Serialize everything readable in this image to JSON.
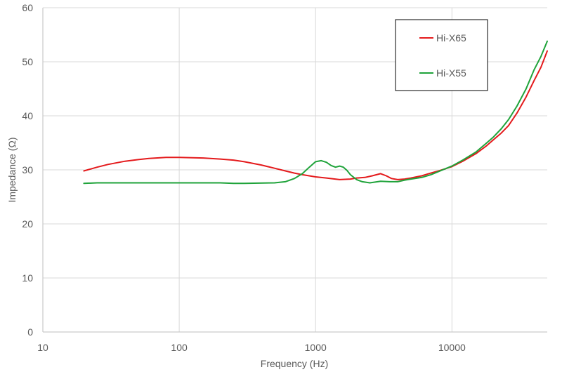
{
  "chart_data": {
    "type": "line",
    "title": "",
    "xlabel": "Frequency (Hz)",
    "ylabel": "Impedance (Ω)",
    "x_scale": "log",
    "xlim": [
      10,
      50000
    ],
    "ylim": [
      0,
      60
    ],
    "x_ticks": [
      10,
      100,
      1000,
      10000
    ],
    "x_tick_labels": [
      "10",
      "100",
      "1000",
      "10000"
    ],
    "y_ticks": [
      0,
      10,
      20,
      30,
      40,
      50,
      60
    ],
    "y_tick_labels": [
      "0",
      "10",
      "20",
      "30",
      "40",
      "50",
      "60"
    ],
    "grid": true,
    "legend_position": "top-right",
    "series": [
      {
        "name": "Hi-X65",
        "color": "#e41a1c",
        "points": [
          [
            20,
            29.8
          ],
          [
            25,
            30.5
          ],
          [
            30,
            31.0
          ],
          [
            40,
            31.6
          ],
          [
            50,
            31.9
          ],
          [
            60,
            32.1
          ],
          [
            80,
            32.3
          ],
          [
            100,
            32.3
          ],
          [
            150,
            32.2
          ],
          [
            200,
            32.0
          ],
          [
            250,
            31.8
          ],
          [
            300,
            31.5
          ],
          [
            400,
            30.9
          ],
          [
            500,
            30.3
          ],
          [
            600,
            29.8
          ],
          [
            700,
            29.4
          ],
          [
            800,
            29.1
          ],
          [
            1000,
            28.7
          ],
          [
            1200,
            28.5
          ],
          [
            1500,
            28.2
          ],
          [
            1800,
            28.3
          ],
          [
            2000,
            28.5
          ],
          [
            2300,
            28.6
          ],
          [
            2600,
            28.9
          ],
          [
            3000,
            29.3
          ],
          [
            3300,
            28.9
          ],
          [
            3600,
            28.4
          ],
          [
            4000,
            28.2
          ],
          [
            4500,
            28.3
          ],
          [
            5000,
            28.5
          ],
          [
            6000,
            28.9
          ],
          [
            7000,
            29.4
          ],
          [
            8000,
            29.8
          ],
          [
            10000,
            30.6
          ],
          [
            12000,
            31.6
          ],
          [
            15000,
            33.0
          ],
          [
            18000,
            34.5
          ],
          [
            20000,
            35.5
          ],
          [
            23000,
            36.8
          ],
          [
            26000,
            38.2
          ],
          [
            30000,
            40.5
          ],
          [
            35000,
            43.5
          ],
          [
            40000,
            46.5
          ],
          [
            45000,
            49.0
          ],
          [
            50000,
            52.0
          ]
        ]
      },
      {
        "name": "Hi-X55",
        "color": "#1fa33a",
        "points": [
          [
            20,
            27.5
          ],
          [
            25,
            27.6
          ],
          [
            30,
            27.6
          ],
          [
            50,
            27.6
          ],
          [
            100,
            27.6
          ],
          [
            200,
            27.6
          ],
          [
            250,
            27.5
          ],
          [
            300,
            27.5
          ],
          [
            500,
            27.6
          ],
          [
            600,
            27.8
          ],
          [
            700,
            28.4
          ],
          [
            800,
            29.3
          ],
          [
            900,
            30.5
          ],
          [
            1000,
            31.5
          ],
          [
            1100,
            31.7
          ],
          [
            1200,
            31.4
          ],
          [
            1300,
            30.8
          ],
          [
            1400,
            30.5
          ],
          [
            1500,
            30.7
          ],
          [
            1600,
            30.5
          ],
          [
            1700,
            29.9
          ],
          [
            1800,
            29.1
          ],
          [
            2000,
            28.2
          ],
          [
            2200,
            27.8
          ],
          [
            2500,
            27.6
          ],
          [
            3000,
            27.9
          ],
          [
            3500,
            27.8
          ],
          [
            4000,
            27.8
          ],
          [
            4500,
            28.1
          ],
          [
            5000,
            28.3
          ],
          [
            6000,
            28.6
          ],
          [
            7000,
            29.1
          ],
          [
            8000,
            29.7
          ],
          [
            10000,
            30.7
          ],
          [
            12000,
            31.8
          ],
          [
            15000,
            33.3
          ],
          [
            18000,
            35.0
          ],
          [
            20000,
            36.0
          ],
          [
            23000,
            37.6
          ],
          [
            26000,
            39.3
          ],
          [
            30000,
            41.8
          ],
          [
            35000,
            45.0
          ],
          [
            40000,
            48.5
          ],
          [
            45000,
            51.0
          ],
          [
            50000,
            53.8
          ]
        ]
      }
    ]
  }
}
